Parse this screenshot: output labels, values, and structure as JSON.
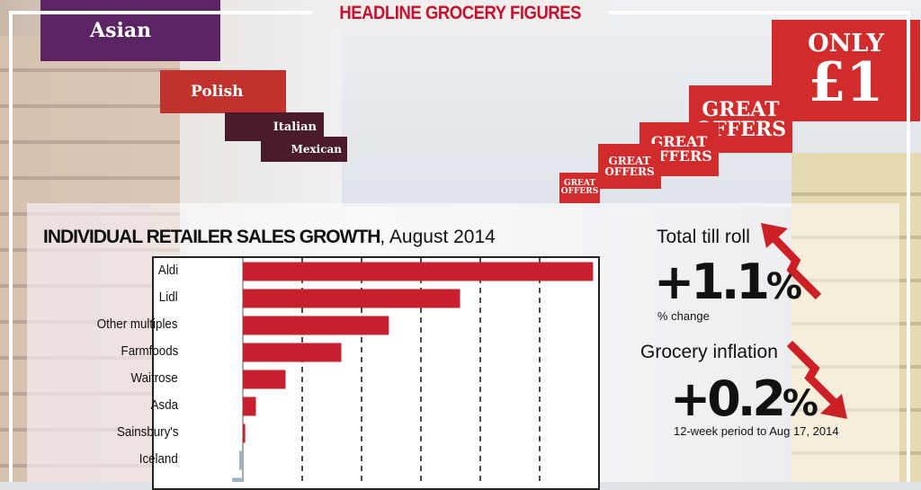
{
  "banner": {
    "title": "HEADLINE GROCERY FIGURES"
  },
  "background_signs": [
    "Asian",
    "Polish",
    "Italian",
    "Mexican",
    "ONLY",
    "£1",
    "GREAT",
    "OFFERS"
  ],
  "chart_data": {
    "type": "bar",
    "orientation": "horizontal",
    "title": "INDIVIDUAL RETAILER SALES GROWTH",
    "subtitle": ", August 2014",
    "categories": [
      "Aldi",
      "Lidl",
      "Other multiples",
      "Farmfoods",
      "Waitrose",
      "Asda",
      "Sainsbury's",
      "Iceland",
      ""
    ],
    "values": [
      29.5,
      18.3,
      12.3,
      8.3,
      3.6,
      1.1,
      0.2,
      -0.3,
      -0.9
    ],
    "xlim": [
      -7.5,
      30
    ],
    "grid": "vertical dashed",
    "gridline_step": 5,
    "colors": {
      "positive": "#c8202f",
      "negative": "#9fb3c0"
    }
  },
  "stats": {
    "till_roll": {
      "label": "Total till roll",
      "value": "+1.1",
      "unit": "%",
      "note": "% change",
      "arrow": "up"
    },
    "inflation": {
      "label": "Grocery inflation",
      "value": "+0.2",
      "unit": "%",
      "note": "12-week period to Aug 17, 2014",
      "arrow": "down"
    }
  },
  "colors": {
    "accent": "#c8102e",
    "arrow": "#cc1f26"
  }
}
